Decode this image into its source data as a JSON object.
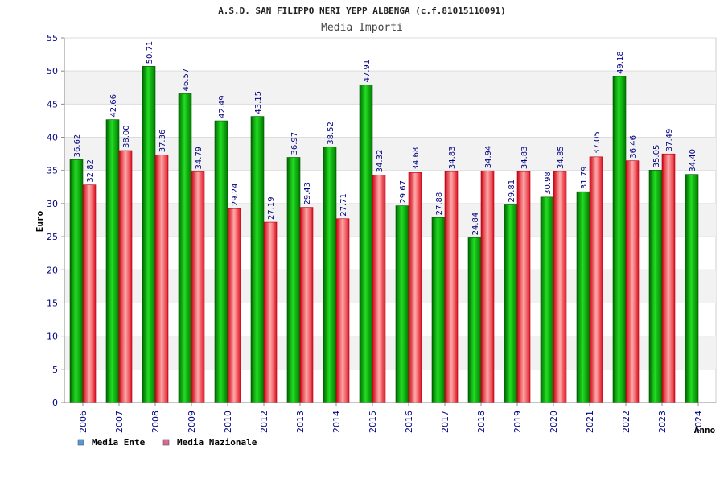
{
  "chart_data": {
    "type": "bar",
    "title": "A.S.D. SAN FILIPPO NERI YEPP ALBENGA (c.f.81015110091)",
    "subtitle": "Media Importi",
    "xlabel": "Anno",
    "ylabel": "Euro",
    "ylim": [
      0,
      55
    ],
    "yticks": [
      0,
      5,
      10,
      15,
      20,
      25,
      30,
      35,
      40,
      45,
      50,
      55
    ],
    "categories": [
      "2006",
      "2007",
      "2008",
      "2009",
      "2010",
      "2012",
      "2013",
      "2014",
      "2015",
      "2016",
      "2017",
      "2018",
      "2019",
      "2020",
      "2021",
      "2022",
      "2023",
      "2024"
    ],
    "series": [
      {
        "name": "Media Ente",
        "color": "#00aa00",
        "legend_color": "#5599dd",
        "values": [
          36.62,
          42.66,
          50.71,
          46.57,
          42.49,
          43.15,
          36.97,
          38.52,
          47.91,
          29.67,
          27.88,
          24.84,
          29.81,
          30.98,
          31.79,
          49.18,
          35.05,
          34.4
        ],
        "labels": [
          "36.62",
          "42.66",
          "50.71",
          "46.57",
          "42.49",
          "43.15",
          "36.97",
          "38.52",
          "47.91",
          "29.67",
          "27.88",
          "24.84",
          "29.81",
          "30.98",
          "31.79",
          "49.18",
          "35.05",
          "34.40"
        ]
      },
      {
        "name": "Media Nazionale",
        "color": "#dd1122",
        "legend_color": "#dd6699",
        "values": [
          32.82,
          38.0,
          37.36,
          34.79,
          29.24,
          27.19,
          29.43,
          27.71,
          34.32,
          34.68,
          34.83,
          34.94,
          34.83,
          34.85,
          37.05,
          36.46,
          37.49,
          null
        ],
        "labels": [
          "32.82",
          "38.00",
          "37.36",
          "34.79",
          "29.24",
          "27.19",
          "29.43",
          "27.71",
          "34.32",
          "34.68",
          "34.83",
          "34.94",
          "34.83",
          "34.85",
          "37.05",
          "36.46",
          "37.49",
          null
        ]
      }
    ],
    "grid": true,
    "legend": "bottom-left"
  }
}
